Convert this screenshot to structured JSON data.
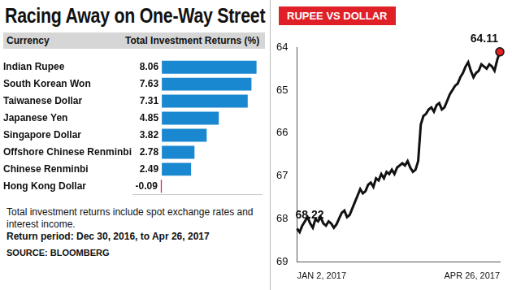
{
  "title": "Racing Away on One-Way Street",
  "chart_data": [
    {
      "type": "bar",
      "orientation": "horizontal",
      "ylabel": "Currency",
      "xlabel": "Total Investment Returns (%)",
      "categories": [
        "Indian Rupee",
        "South Korean Won",
        "Taiwanese Dollar",
        "Japanese Yen",
        "Singapore Dollar",
        "Offshore Chinese Renminbi",
        "Chinese Renminbi",
        "Hong Kong Dollar"
      ],
      "values": [
        8.06,
        7.63,
        7.31,
        4.85,
        3.82,
        2.78,
        2.49,
        -0.09
      ],
      "colors": [
        "#1a88d0",
        "#1a88d0",
        "#1a88d0",
        "#1a88d0",
        "#1a88d0",
        "#1a88d0",
        "#1a88d0",
        "#e0245e"
      ],
      "xlim": [
        -2.5,
        8.5
      ],
      "data_labels": true,
      "grid": false,
      "tick_labels": "y"
    },
    {
      "type": "line",
      "title": "RUPEE VS DOLLAR",
      "categories": [
        "JAN 2, 2017",
        null,
        null,
        null,
        null,
        null,
        null,
        null,
        null,
        null,
        null,
        null,
        null,
        null,
        null,
        null,
        null,
        null,
        null,
        null,
        null,
        null,
        null,
        null,
        null,
        null,
        null,
        null,
        null,
        null,
        null,
        null,
        null,
        null,
        null,
        null,
        null,
        null,
        null,
        null,
        null,
        null,
        null,
        null,
        null,
        null,
        null,
        null,
        null,
        null,
        null,
        null,
        null,
        null,
        null,
        null,
        null,
        null,
        null,
        null,
        null,
        null,
        null,
        null,
        null,
        null,
        null,
        null,
        null,
        null,
        null,
        null,
        null,
        null,
        null,
        null,
        null,
        "APR 26, 2017"
      ],
      "values": [
        68.22,
        68.3,
        68.15,
        68.05,
        67.95,
        68.1,
        68.2,
        68.0,
        68.05,
        67.95,
        68.1,
        68.15,
        68.05,
        68.1,
        68.2,
        68.12,
        67.98,
        67.85,
        67.8,
        67.95,
        67.9,
        67.75,
        67.6,
        67.45,
        67.3,
        67.4,
        67.35,
        67.2,
        67.15,
        67.25,
        67.05,
        67.1,
        66.95,
        67.05,
        66.9,
        66.95,
        66.85,
        66.95,
        66.8,
        66.75,
        66.7,
        66.75,
        66.65,
        66.8,
        66.9,
        66.85,
        66.65,
        65.8,
        65.6,
        65.55,
        65.45,
        65.4,
        65.5,
        65.35,
        65.3,
        65.45,
        65.4,
        65.25,
        65.1,
        65.0,
        64.9,
        64.85,
        64.7,
        64.6,
        64.45,
        64.35,
        64.55,
        64.7,
        64.6,
        64.55,
        64.4,
        64.45,
        64.5,
        64.4,
        64.45,
        64.55,
        64.3,
        64.11
      ],
      "color": "#111111",
      "marker": "none",
      "ylim": [
        69,
        64
      ],
      "yticks": [
        64,
        65,
        66,
        67,
        68,
        69
      ],
      "grid": false,
      "annotations": [
        {
          "x": "JAN 2, 2017",
          "y": 68.22,
          "text": "68.22"
        },
        {
          "x": "APR 26, 2017",
          "y": 64.11,
          "text": "64.11",
          "marker": "circle",
          "color": "#e02027"
        }
      ]
    }
  ],
  "notes": [
    "Total investment returns include spot exchange rates and interest income.",
    "Return period: Dec 30, 2016, to Apr 26, 2017"
  ],
  "source": "SOURCE: BLOOMBERG"
}
